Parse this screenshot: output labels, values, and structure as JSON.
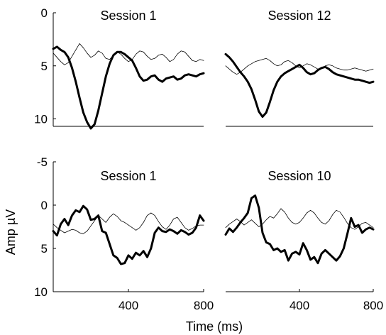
{
  "figure": {
    "shared_ylabel": "Amp µV",
    "shared_xlabel": "Time (ms)"
  },
  "chart_data": [
    {
      "type": "line",
      "title": "Session 1",
      "xlim": [
        0,
        800
      ],
      "ylim": [
        0,
        10.7
      ],
      "y_inverted": true,
      "yticks": [
        0,
        5,
        10
      ],
      "ytick_labels": [
        "0",
        "5",
        "10"
      ],
      "xticks": [],
      "xtick_labels": [],
      "show_yaxis": true,
      "series": [
        {
          "style": "thick",
          "x": [
            0,
            20,
            40,
            60,
            80,
            100,
            120,
            140,
            160,
            180,
            200,
            220,
            240,
            260,
            280,
            300,
            320,
            340,
            360,
            380,
            400,
            420,
            440,
            460,
            480,
            500,
            520,
            540,
            560,
            580,
            600,
            620,
            640,
            660,
            680,
            700,
            720,
            740,
            760,
            780,
            800
          ],
          "y": [
            3.4,
            3.2,
            3.5,
            3.7,
            4.2,
            5.2,
            6.5,
            8.0,
            9.4,
            10.3,
            10.9,
            10.5,
            9.2,
            7.6,
            6.0,
            4.8,
            4.0,
            3.7,
            3.7,
            3.9,
            4.2,
            4.5,
            5.2,
            6.0,
            6.4,
            6.3,
            6.0,
            5.9,
            6.3,
            6.5,
            6.2,
            6.1,
            6.0,
            6.3,
            6.2,
            5.9,
            5.8,
            5.9,
            6.0,
            5.8,
            5.7
          ]
        },
        {
          "style": "thin",
          "x": [
            0,
            20,
            40,
            60,
            80,
            100,
            120,
            140,
            160,
            180,
            200,
            220,
            240,
            260,
            280,
            300,
            320,
            340,
            360,
            380,
            400,
            420,
            440,
            460,
            480,
            500,
            520,
            540,
            560,
            580,
            600,
            620,
            640,
            660,
            680,
            700,
            720,
            740,
            760,
            780,
            800
          ],
          "y": [
            3.8,
            4.2,
            4.6,
            4.9,
            4.7,
            4.1,
            3.5,
            2.9,
            3.3,
            3.8,
            4.2,
            4.0,
            3.6,
            3.8,
            4.3,
            4.4,
            4.0,
            3.7,
            3.9,
            4.3,
            4.6,
            4.4,
            3.9,
            3.6,
            3.7,
            4.1,
            4.4,
            4.3,
            4.0,
            3.9,
            4.2,
            4.6,
            4.4,
            3.9,
            3.6,
            3.7,
            4.1,
            4.5,
            4.6,
            4.4,
            4.5
          ]
        }
      ]
    },
    {
      "type": "line",
      "title": "Session 12",
      "xlim": [
        0,
        800
      ],
      "ylim": [
        0,
        10.7
      ],
      "y_inverted": true,
      "yticks": [],
      "ytick_labels": [],
      "xticks": [],
      "xtick_labels": [],
      "show_yaxis": false,
      "series": [
        {
          "style": "thick",
          "x": [
            0,
            20,
            40,
            60,
            80,
            100,
            120,
            140,
            160,
            180,
            200,
            220,
            240,
            260,
            280,
            300,
            320,
            340,
            360,
            380,
            400,
            420,
            440,
            460,
            480,
            500,
            520,
            540,
            560,
            580,
            600,
            620,
            640,
            660,
            680,
            700,
            720,
            740,
            760,
            780,
            800
          ],
          "y": [
            3.9,
            4.2,
            4.6,
            5.1,
            5.6,
            6.0,
            6.5,
            7.2,
            8.2,
            9.3,
            9.8,
            9.4,
            8.4,
            7.3,
            6.5,
            6.0,
            5.7,
            5.5,
            5.3,
            5.1,
            4.9,
            5.2,
            5.6,
            5.8,
            5.7,
            5.4,
            5.2,
            5.1,
            5.3,
            5.6,
            5.8,
            5.9,
            6.0,
            6.1,
            6.2,
            6.3,
            6.3,
            6.4,
            6.5,
            6.6,
            6.5
          ]
        },
        {
          "style": "thin",
          "x": [
            0,
            20,
            40,
            60,
            80,
            100,
            120,
            140,
            160,
            180,
            200,
            220,
            240,
            260,
            280,
            300,
            320,
            340,
            360,
            380,
            400,
            420,
            440,
            460,
            480,
            500,
            520,
            540,
            560,
            580,
            600,
            620,
            640,
            660,
            680,
            700,
            720,
            740,
            760,
            780,
            800
          ],
          "y": [
            5.0,
            5.3,
            5.6,
            5.8,
            5.6,
            5.3,
            5.0,
            4.8,
            4.6,
            4.5,
            4.4,
            4.3,
            4.5,
            4.8,
            5.0,
            4.9,
            4.6,
            4.5,
            4.7,
            5.0,
            5.2,
            5.0,
            4.8,
            4.9,
            5.1,
            5.3,
            5.2,
            5.0,
            4.9,
            5.0,
            5.2,
            5.3,
            5.4,
            5.4,
            5.3,
            5.2,
            5.3,
            5.4,
            5.5,
            5.4,
            5.3
          ]
        }
      ]
    },
    {
      "type": "line",
      "title": "Session 1",
      "xlim": [
        0,
        800
      ],
      "ylim": [
        -5,
        10
      ],
      "y_inverted": true,
      "yticks": [
        -5,
        0,
        5,
        10
      ],
      "ytick_labels": [
        "-5",
        "0",
        "5",
        "10"
      ],
      "xticks": [
        400,
        800
      ],
      "xtick_labels": [
        "400",
        "800"
      ],
      "show_yaxis": true,
      "series": [
        {
          "style": "thick",
          "x": [
            0,
            20,
            40,
            60,
            80,
            100,
            120,
            140,
            160,
            180,
            200,
            220,
            240,
            260,
            280,
            300,
            320,
            340,
            360,
            380,
            400,
            420,
            440,
            460,
            480,
            500,
            520,
            540,
            560,
            580,
            600,
            620,
            640,
            660,
            680,
            700,
            720,
            740,
            760,
            780,
            800
          ],
          "y": [
            3.0,
            3.5,
            2.2,
            1.6,
            2.3,
            1.2,
            0.6,
            0.8,
            0.1,
            0.5,
            1.7,
            1.6,
            1.2,
            3.0,
            3.2,
            4.5,
            5.8,
            6.1,
            6.8,
            6.7,
            5.8,
            6.2,
            5.5,
            5.8,
            5.3,
            6.0,
            5.0,
            3.2,
            2.6,
            3.0,
            3.1,
            2.8,
            3.0,
            3.3,
            2.9,
            3.1,
            3.4,
            3.2,
            2.6,
            1.2,
            1.8
          ]
        },
        {
          "style": "thin",
          "x": [
            0,
            20,
            40,
            60,
            80,
            100,
            120,
            140,
            160,
            180,
            200,
            220,
            240,
            260,
            280,
            300,
            320,
            340,
            360,
            380,
            400,
            420,
            440,
            460,
            480,
            500,
            520,
            540,
            560,
            580,
            600,
            620,
            640,
            660,
            680,
            700,
            720,
            740,
            760,
            780,
            800
          ],
          "y": [
            2.2,
            2.6,
            2.9,
            3.2,
            3.0,
            2.8,
            2.9,
            3.2,
            3.3,
            3.0,
            2.4,
            1.8,
            1.2,
            1.6,
            2.0,
            1.4,
            1.0,
            1.3,
            1.8,
            2.0,
            2.3,
            2.6,
            2.9,
            2.6,
            2.0,
            1.2,
            0.9,
            1.2,
            1.9,
            2.5,
            2.8,
            2.3,
            1.6,
            1.4,
            2.0,
            2.6,
            2.9,
            2.7,
            2.4,
            2.3,
            2.3
          ]
        }
      ]
    },
    {
      "type": "line",
      "title": "Session 10",
      "xlim": [
        0,
        800
      ],
      "ylim": [
        -5,
        10
      ],
      "y_inverted": true,
      "yticks": [],
      "ytick_labels": [],
      "xticks": [
        400,
        800
      ],
      "xtick_labels": [
        "400",
        "800"
      ],
      "show_yaxis": false,
      "series": [
        {
          "style": "thick",
          "x": [
            0,
            20,
            40,
            60,
            80,
            100,
            120,
            140,
            160,
            180,
            200,
            220,
            240,
            260,
            280,
            300,
            320,
            340,
            360,
            380,
            400,
            420,
            440,
            460,
            480,
            500,
            520,
            540,
            560,
            580,
            600,
            620,
            640,
            660,
            680,
            700,
            720,
            740,
            760,
            780,
            800
          ],
          "y": [
            3.4,
            2.7,
            3.1,
            2.6,
            2.0,
            1.5,
            0.9,
            -0.8,
            -1.1,
            0.3,
            3.2,
            4.3,
            4.5,
            5.2,
            5.0,
            5.4,
            5.2,
            6.4,
            5.6,
            5.4,
            5.7,
            4.4,
            5.2,
            6.3,
            6.0,
            6.7,
            5.6,
            5.2,
            5.6,
            6.0,
            6.4,
            5.9,
            5.0,
            3.3,
            1.5,
            2.5,
            2.3,
            3.2,
            2.8,
            2.6,
            2.8
          ]
        },
        {
          "style": "thin",
          "x": [
            0,
            20,
            40,
            60,
            80,
            100,
            120,
            140,
            160,
            180,
            200,
            220,
            240,
            260,
            280,
            300,
            320,
            340,
            360,
            380,
            400,
            420,
            440,
            460,
            480,
            500,
            520,
            540,
            560,
            580,
            600,
            620,
            640,
            660,
            680,
            700,
            720,
            740,
            760,
            780,
            800
          ],
          "y": [
            2.6,
            2.2,
            1.9,
            1.6,
            1.9,
            2.3,
            2.0,
            1.7,
            2.1,
            2.5,
            2.2,
            1.7,
            1.3,
            1.5,
            1.0,
            0.4,
            0.8,
            1.5,
            2.0,
            2.2,
            2.0,
            1.5,
            0.9,
            0.6,
            0.9,
            1.5,
            2.0,
            2.2,
            1.8,
            1.1,
            0.6,
            0.8,
            1.4,
            2.1,
            2.6,
            2.8,
            2.5,
            2.1,
            2.0,
            2.3,
            2.6
          ]
        }
      ]
    }
  ]
}
